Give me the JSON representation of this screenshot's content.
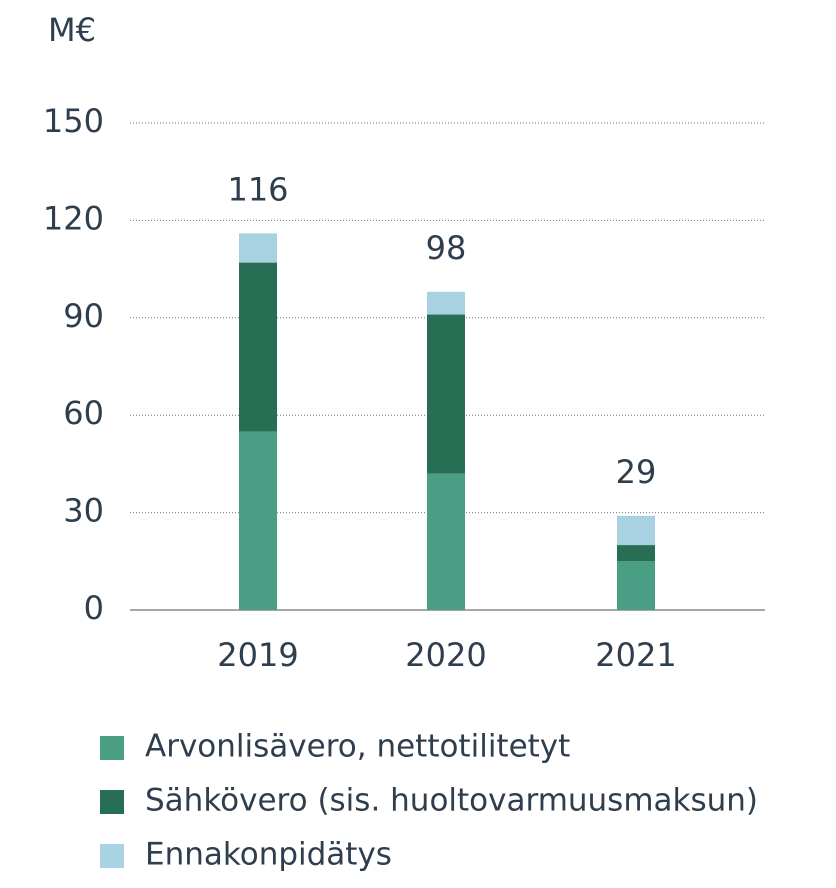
{
  "chart_data": {
    "type": "stacked_bar",
    "y_label": "M€",
    "categories": [
      "2019",
      "2020",
      "2021"
    ],
    "series": [
      {
        "name": "Arvonlisävero, nettotilitetyt",
        "color": "#4a9e84",
        "values": [
          55,
          42,
          15
        ]
      },
      {
        "name": "Sähkövero (sis. huoltovarmuusmaksun)",
        "color": "#276e54",
        "values": [
          52,
          49,
          5
        ]
      },
      {
        "name": "Ennakonpidätys",
        "color": "#a8d1e1",
        "values": [
          9,
          7,
          9
        ]
      }
    ],
    "totals": [
      116,
      98,
      29
    ],
    "ylim": [
      0,
      150
    ],
    "yticks": [
      0,
      30,
      60,
      90,
      120,
      150
    ],
    "grid": true
  }
}
